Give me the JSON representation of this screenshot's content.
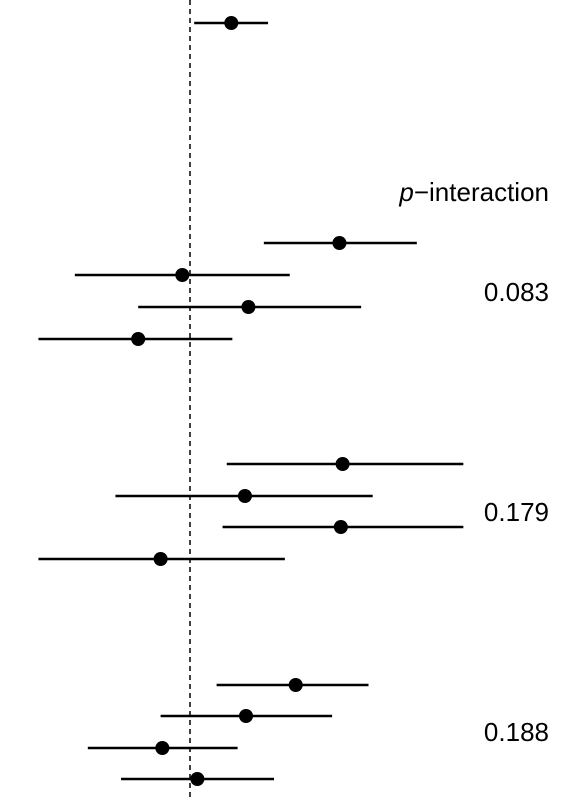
{
  "chart_data": {
    "type": "forest",
    "reference_line": "dashed vertical line",
    "header": "interaction",
    "header_prefix": "p",
    "header_dash": "−",
    "rows": [
      {
        "est": 0.118,
        "lo": 0.012,
        "hi": 0.223,
        "y": 23
      },
      {
        "est": 0.427,
        "lo": 0.211,
        "hi": 0.648,
        "y": 243
      },
      {
        "est": -0.022,
        "lo": -0.329,
        "hi": 0.285,
        "y": 275
      },
      {
        "est": 0.167,
        "lo": -0.148,
        "hi": 0.489,
        "y": 307
      },
      {
        "est": -0.148,
        "lo": -0.433,
        "hi": 0.121,
        "y": 339
      },
      {
        "est": 0.436,
        "lo": 0.105,
        "hi": 0.781,
        "y": 464
      },
      {
        "est": 0.157,
        "lo": -0.213,
        "hi": 0.522,
        "y": 496
      },
      {
        "est": 0.431,
        "lo": 0.093,
        "hi": 0.781,
        "y": 527
      },
      {
        "est": -0.084,
        "lo": -0.433,
        "hi": 0.271,
        "y": 559
      },
      {
        "est": 0.302,
        "lo": 0.076,
        "hi": 0.51,
        "y": 685
      },
      {
        "est": 0.16,
        "lo": -0.084,
        "hi": 0.406,
        "y": 716
      },
      {
        "est": -0.079,
        "lo": -0.292,
        "hi": 0.136,
        "y": 748
      },
      {
        "est": 0.021,
        "lo": -0.197,
        "hi": 0.24,
        "y": 779
      }
    ],
    "p_values": [
      "0.083",
      "0.179",
      "0.188"
    ]
  }
}
